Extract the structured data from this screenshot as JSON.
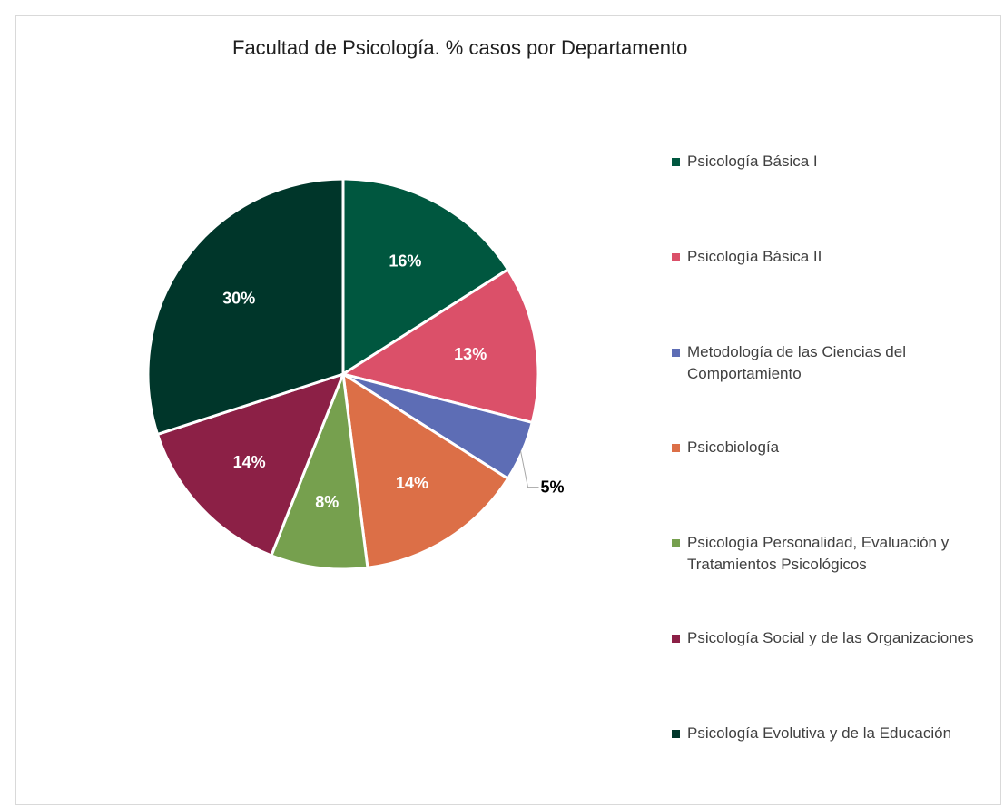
{
  "chart_data": {
    "type": "pie",
    "title": "Facultad de Psicología. % casos por Departamento",
    "slices": [
      {
        "name": "Psicología Básica I",
        "value": 16,
        "label": "16%",
        "color": "#00573f"
      },
      {
        "name": "Psicología Básica II",
        "value": 13,
        "label": "13%",
        "color": "#db5069"
      },
      {
        "name": "Metodología de las Ciencias del Comportamiento",
        "value": 5,
        "label": "5%",
        "color": "#5d6db5"
      },
      {
        "name": "Psicobiología",
        "value": 14,
        "label": "14%",
        "color": "#dc6f47"
      },
      {
        "name": "Psicología Personalidad, Evaluación y Tratamientos Psicológicos",
        "value": 8,
        "label": "8%",
        "color": "#76a04e"
      },
      {
        "name": "Psicología Social y de las Organizaciones",
        "value": 14,
        "label": "14%",
        "color": "#8c2046"
      },
      {
        "name": "Psicología Evolutiva y de la Educación",
        "value": 30,
        "label": "30%",
        "color": "#00362a"
      }
    ],
    "legend_position": "right"
  }
}
